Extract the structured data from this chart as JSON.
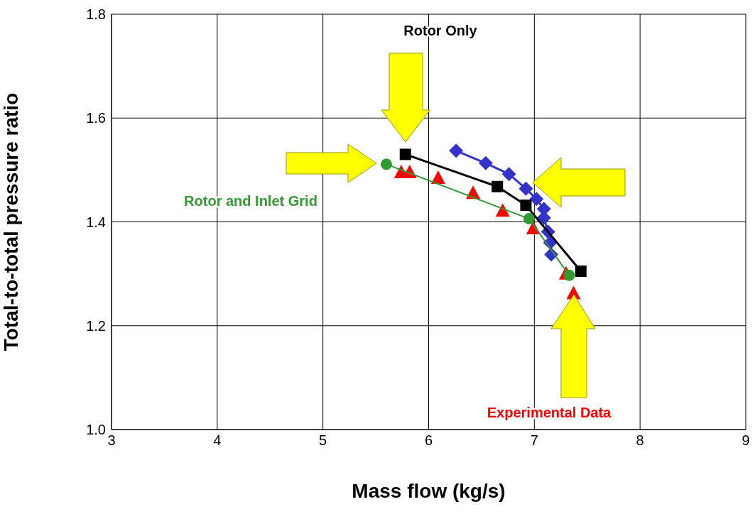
{
  "chart_data": {
    "type": "line",
    "xlabel": "Mass flow (kg/s)",
    "ylabel": "Total-to-total pressure ratio",
    "xlim": [
      3,
      9
    ],
    "xticks": [
      3,
      4,
      5,
      6,
      7,
      8,
      9
    ],
    "ylim": [
      1.0,
      1.8
    ],
    "yticks": [
      {
        "value": 1.0,
        "label": "1.0"
      },
      1.2,
      1.4,
      1.6,
      1.8
    ],
    "grid": true,
    "legend": false,
    "series": [
      {
        "color": "#3333cc",
        "marker": "diamond",
        "x": [
          6.26,
          6.54,
          6.76,
          6.92,
          7.02,
          7.09,
          7.09,
          7.13,
          7.15,
          7.16
        ],
        "values": [
          1.537,
          1.513,
          1.492,
          1.464,
          1.444,
          1.425,
          1.408,
          1.381,
          1.36,
          1.337
        ]
      },
      {
        "name": "Rotor Only",
        "color": "#000000",
        "marker": "square",
        "x": [
          5.78,
          6.65,
          6.92,
          7.44
        ],
        "values": [
          1.53,
          1.468,
          1.432,
          1.305
        ]
      },
      {
        "name": "Rotor and Inlet Grid",
        "color": "#339933",
        "marker": "circle",
        "x": [
          5.6,
          6.95,
          7.33
        ],
        "values": [
          1.511,
          1.406,
          1.297
        ]
      },
      {
        "name": "Experimental Data",
        "type": "scatter",
        "color": "#ff0000",
        "marker": "triangle",
        "x": [
          5.74,
          5.82,
          6.09,
          6.42,
          6.7,
          6.99,
          7.3,
          7.37
        ],
        "values": [
          1.495,
          1.495,
          1.484,
          1.455,
          1.421,
          1.387,
          1.3,
          1.262
        ]
      }
    ]
  }
}
